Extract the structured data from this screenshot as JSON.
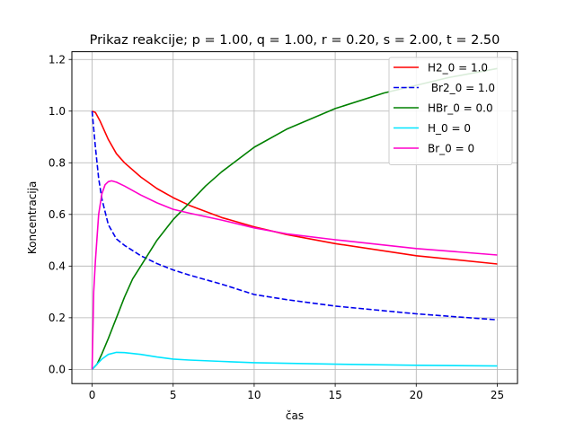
{
  "chart_data": {
    "type": "line",
    "title": "Prikaz reakcije; p = 1.00, q = 1.00, r = 0.20, s = 2.00, t = 2.50",
    "xlabel": "čas",
    "ylabel": "Koncentracija",
    "xlim": [
      -1.25,
      26.25
    ],
    "ylim": [
      -0.055,
      1.23
    ],
    "x_ticks": [
      0,
      5,
      10,
      15,
      20,
      25
    ],
    "y_ticks": [
      0.0,
      0.2,
      0.4,
      0.6,
      0.8,
      1.0,
      1.2
    ],
    "x_tick_labels": [
      "0",
      "5",
      "10",
      "15",
      "20",
      "25"
    ],
    "y_tick_labels": [
      "0.0",
      "0.2",
      "0.4",
      "0.6",
      "0.8",
      "1.0",
      "1.2"
    ],
    "grid": true,
    "legend_position": "top-right",
    "series": [
      {
        "name": "H2_0 = 1.0",
        "color": "#ff0000",
        "dash": "solid",
        "x": [
          0,
          0.2,
          0.5,
          1,
          1.5,
          2,
          3,
          4,
          5,
          6,
          8,
          10,
          12,
          15,
          20,
          25
        ],
        "y": [
          1.0,
          0.995,
          0.96,
          0.89,
          0.835,
          0.8,
          0.745,
          0.7,
          0.665,
          0.635,
          0.588,
          0.552,
          0.522,
          0.487,
          0.44,
          0.408
        ]
      },
      {
        "name": " Br2_0 = 1.0",
        "color": "#0000ee",
        "dash": "dashed",
        "x": [
          0,
          0.2,
          0.4,
          0.6,
          0.8,
          1,
          1.5,
          2,
          3,
          4,
          5,
          6,
          8,
          10,
          12,
          15,
          20,
          25
        ],
        "y": [
          1.0,
          0.86,
          0.74,
          0.66,
          0.61,
          0.56,
          0.505,
          0.48,
          0.44,
          0.41,
          0.385,
          0.365,
          0.33,
          0.29,
          0.27,
          0.245,
          0.215,
          0.192
        ]
      },
      {
        "name": "HBr_0 = 0.0",
        "color": "#008000",
        "dash": "solid",
        "x": [
          0,
          0.3,
          0.6,
          1,
          1.5,
          2,
          2.5,
          3,
          4,
          5,
          6,
          7,
          8,
          10,
          12,
          15,
          18,
          20,
          22,
          25
        ],
        "y": [
          0.0,
          0.02,
          0.06,
          0.12,
          0.2,
          0.28,
          0.35,
          0.4,
          0.5,
          0.58,
          0.645,
          0.71,
          0.765,
          0.86,
          0.93,
          1.01,
          1.07,
          1.1,
          1.13,
          1.165
        ]
      },
      {
        "name": "H_0 = 0",
        "color": "#00e5ff",
        "dash": "solid",
        "x": [
          0,
          0.3,
          0.6,
          1,
          1.5,
          2,
          3,
          4,
          5,
          6,
          8,
          10,
          15,
          20,
          25
        ],
        "y": [
          0.0,
          0.02,
          0.04,
          0.058,
          0.066,
          0.065,
          0.058,
          0.048,
          0.04,
          0.036,
          0.031,
          0.026,
          0.02,
          0.016,
          0.013
        ]
      },
      {
        "name": "Br_0 = 0",
        "color": "#ff00cc",
        "dash": "solid",
        "x": [
          0,
          0.1,
          0.2,
          0.4,
          0.6,
          0.8,
          1,
          1.2,
          1.5,
          2,
          3,
          4,
          5,
          6,
          8,
          10,
          12,
          15,
          20,
          25
        ],
        "y": [
          0.0,
          0.3,
          0.42,
          0.6,
          0.68,
          0.715,
          0.727,
          0.73,
          0.725,
          0.71,
          0.675,
          0.645,
          0.62,
          0.605,
          0.578,
          0.548,
          0.525,
          0.502,
          0.468,
          0.443
        ]
      }
    ]
  }
}
